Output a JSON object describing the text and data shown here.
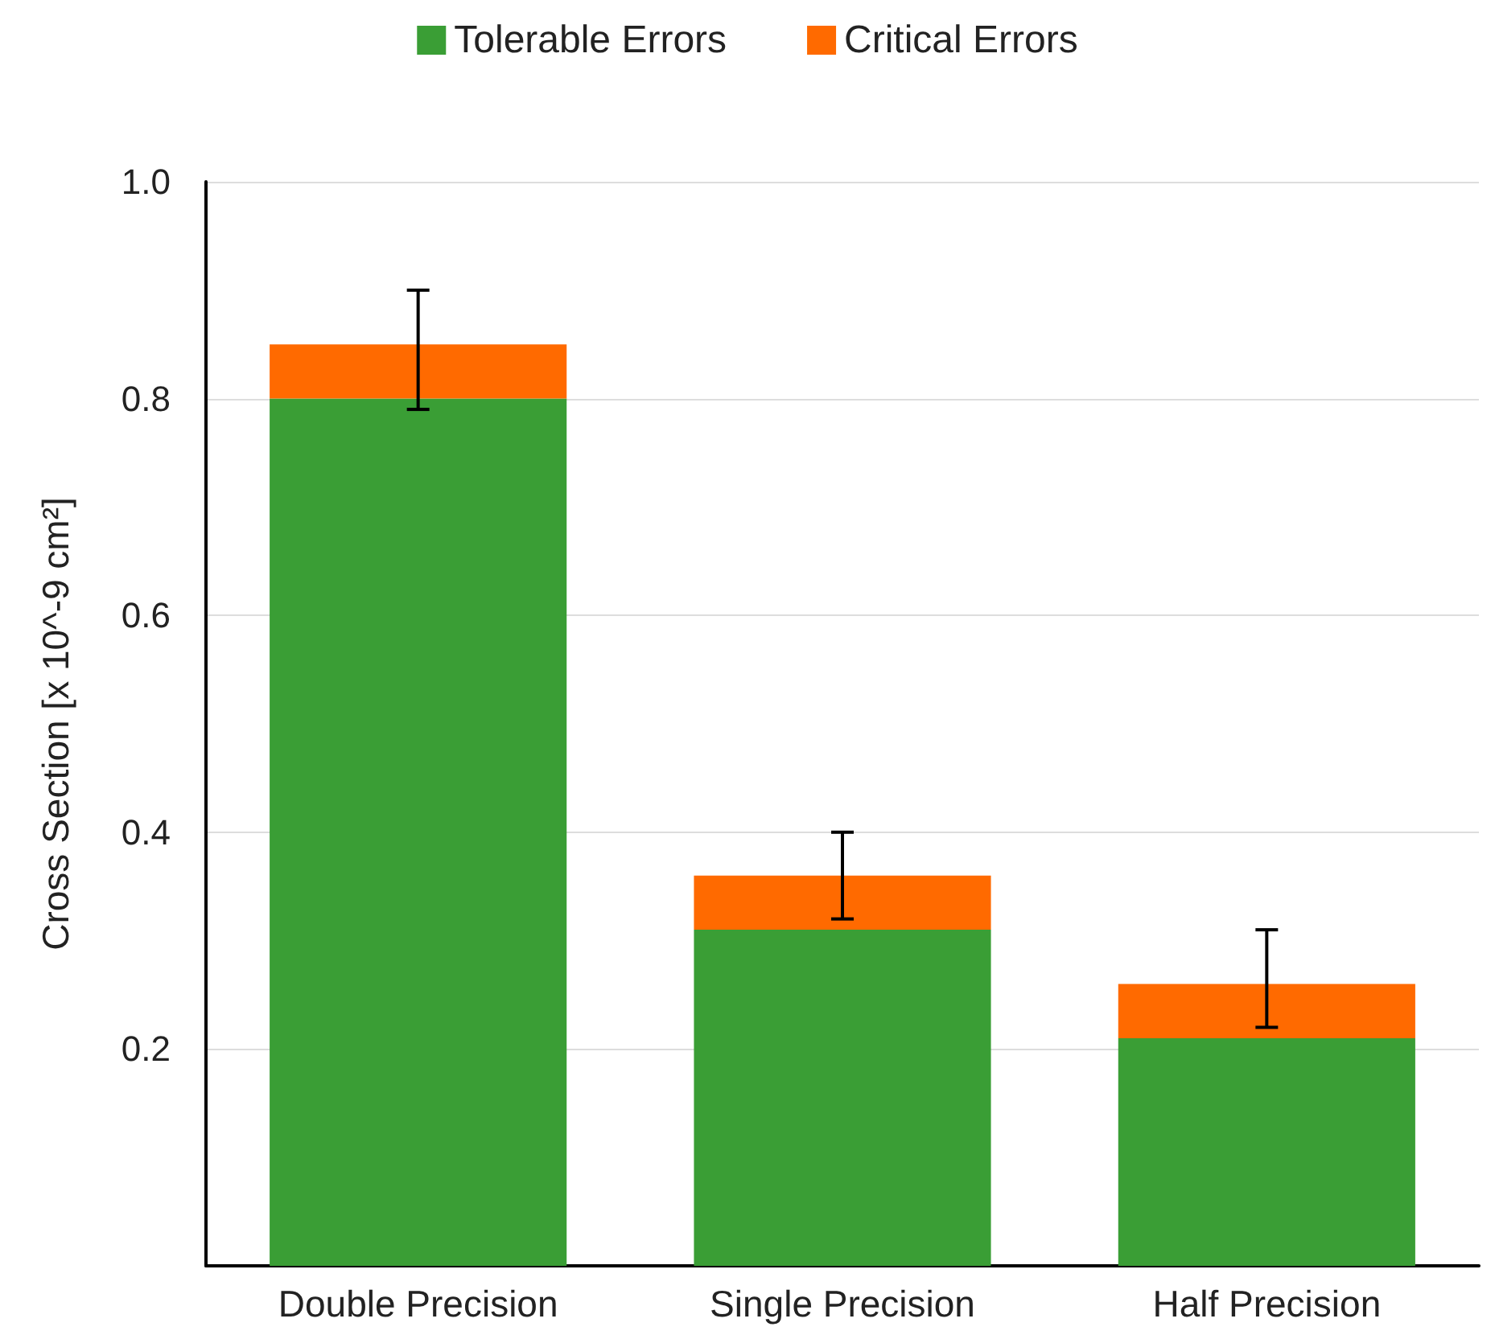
{
  "chart_data": {
    "type": "bar",
    "stacked": true,
    "ylabel": "Cross Section [x 10^-9 cm²]",
    "categories": [
      "Double Precision",
      "Single Precision",
      "Half Precision"
    ],
    "series": [
      {
        "name": "Tolerable Errors",
        "color": "#3a9e35",
        "values": [
          0.8,
          0.31,
          0.21
        ]
      },
      {
        "name": "Critical Errors",
        "color": "#ff6a00",
        "values": [
          0.05,
          0.05,
          0.05
        ],
        "errors": [
          [
            0.79,
            0.9
          ],
          [
            0.32,
            0.4
          ],
          [
            0.22,
            0.31
          ]
        ]
      }
    ],
    "ylim": [
      0,
      1
    ],
    "yticks": [
      0.2,
      0.4,
      0.6,
      0.8,
      {
        "value": 1,
        "label": "1.0"
      }
    ],
    "grid": "y",
    "legend": "top"
  }
}
